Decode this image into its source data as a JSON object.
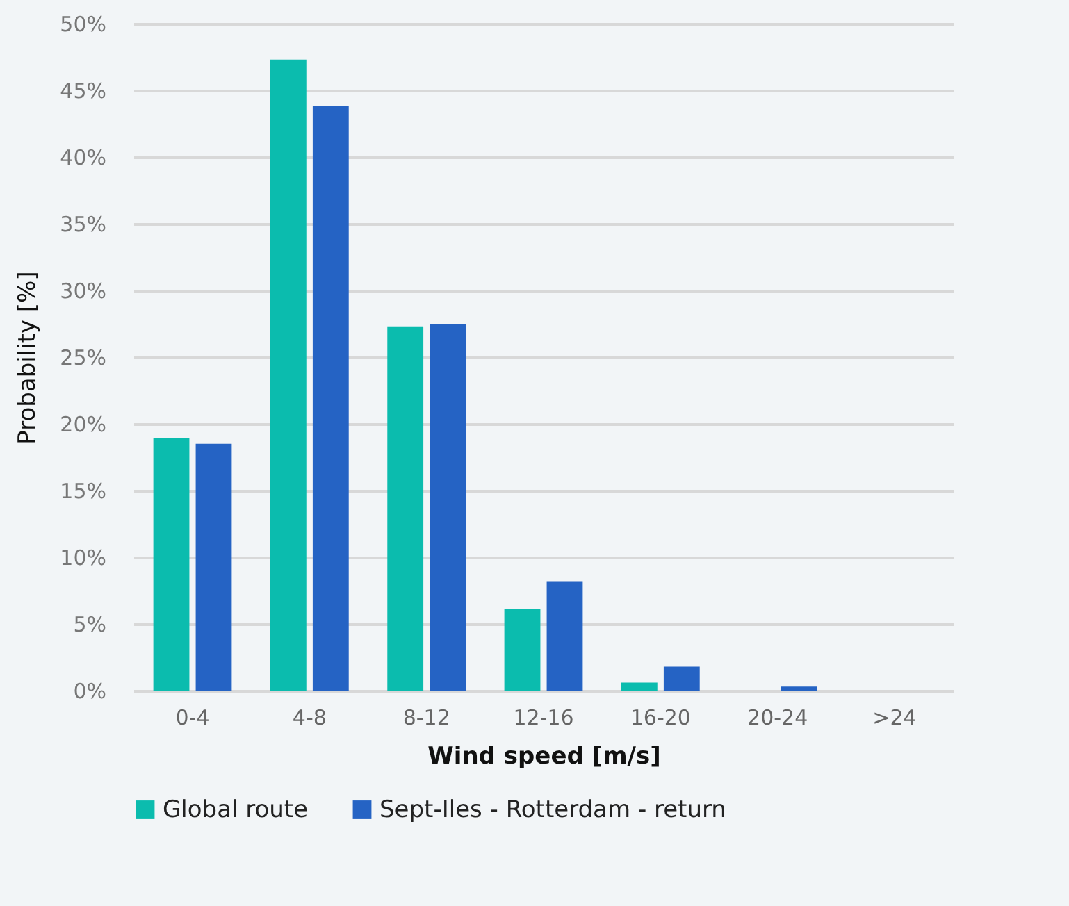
{
  "chart_data": {
    "type": "bar",
    "xlabel": "Wind speed [m/s]",
    "ylabel": "Probability [%]",
    "categories": [
      "0-4",
      "4-8",
      "8-12",
      "12-16",
      "16-20",
      "20-24",
      ">24"
    ],
    "series": [
      {
        "name": "Global route",
        "color": "#0bbcae",
        "values": [
          18.9,
          47.3,
          27.3,
          6.1,
          0.6,
          0,
          0
        ]
      },
      {
        "name": "Sept-Iles - Rotterdam - return",
        "color": "#2563c4",
        "values": [
          18.5,
          43.8,
          27.5,
          8.2,
          1.8,
          0.3,
          0
        ]
      }
    ],
    "ylim": [
      0,
      50
    ],
    "yticks": [
      {
        "value": 0,
        "label": "0%"
      },
      {
        "value": 5,
        "label": "5%"
      },
      {
        "value": 10,
        "label": "10%"
      },
      {
        "value": 15,
        "label": "15%"
      },
      {
        "value": 20,
        "label": "20%"
      },
      {
        "value": 25,
        "label": "25%"
      },
      {
        "value": 30,
        "label": "30%"
      },
      {
        "value": 35,
        "label": "35%"
      },
      {
        "value": 40,
        "label": "40%"
      },
      {
        "value": 45,
        "label": "45%"
      },
      {
        "value": 50,
        "label": "50%"
      }
    ],
    "grid": "y",
    "legend": "bottom"
  }
}
